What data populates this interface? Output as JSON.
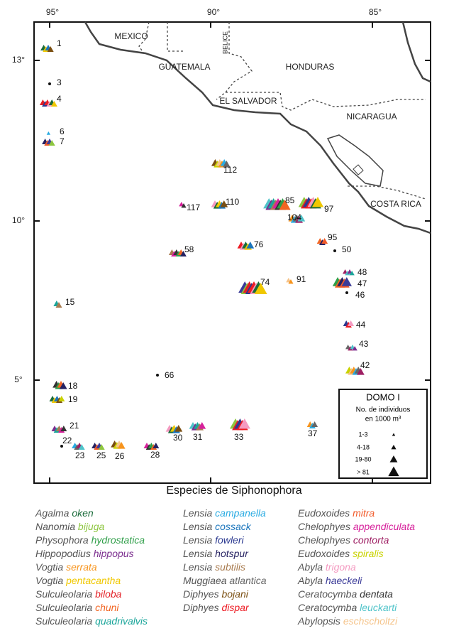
{
  "map": {
    "countries": [
      "MEXICO",
      "GUATEMALA",
      "HONDURAS",
      "EL SALVADOR",
      "NICARAGUA",
      "COSTA RICA"
    ],
    "belize": "BELICE",
    "lon_labels": [
      "95°",
      "90°",
      "85°"
    ],
    "lat_labels": [
      "13°",
      "10°",
      "5°"
    ],
    "stations": [
      "1",
      "3",
      "4",
      "6",
      "7",
      "112",
      "117",
      "110",
      "85",
      "97",
      "104",
      "95",
      "50",
      "58",
      "76",
      "48",
      "74",
      "91",
      "47",
      "46",
      "15",
      "44",
      "43",
      "66",
      "42",
      "18",
      "19",
      "21",
      "22",
      "23",
      "25",
      "26",
      "28",
      "30",
      "31",
      "33",
      "37"
    ]
  },
  "legend": {
    "title": "DOMO I",
    "subtitle": "No. de individuos",
    "unit": "en 1000 m³",
    "classes": [
      "1-3",
      "4-18",
      "19-80",
      "> 81"
    ]
  },
  "species_title": "Especies de Siphonophora",
  "species": [
    {
      "genus": "Agalma",
      "name": "oken",
      "color": "#1a6b3a"
    },
    {
      "genus": "Nanomia",
      "name": "bijuga",
      "color": "#8dc63f"
    },
    {
      "genus": "Physophora",
      "name": "hydrostatica",
      "color": "#2e9e48"
    },
    {
      "genus": "Hippopodius",
      "name": "hippopus",
      "color": "#7b2d8e"
    },
    {
      "genus": "Vogtia",
      "name": "serrata",
      "color": "#f7941d"
    },
    {
      "genus": "Vogtia",
      "name": "pentacantha",
      "color": "#f0c800"
    },
    {
      "genus": "Sulculeolaria",
      "name": "biloba",
      "color": "#e31e24"
    },
    {
      "genus": "Sulculeolaria",
      "name": "chuni",
      "color": "#f26522"
    },
    {
      "genus": "Sulculeolaria",
      "name": "quadrivalvis",
      "color": "#1aa59a"
    },
    {
      "genus": "Lensia",
      "name": "campanella",
      "color": "#29abe2"
    },
    {
      "genus": "Lensia",
      "name": "cossack",
      "color": "#1b75bc"
    },
    {
      "genus": "Lensia",
      "name": "fowleri",
      "color": "#2b3990"
    },
    {
      "genus": "Lensia",
      "name": "hotspur",
      "color": "#262262"
    },
    {
      "genus": "Lensia",
      "name": "subtilis",
      "color": "#a97c50"
    },
    {
      "genus": "Muggiaea",
      "name": "atlantica",
      "color": "#666666"
    },
    {
      "genus": "Diphyes",
      "name": "bojani",
      "color": "#7a4e10"
    },
    {
      "genus": "Diphyes",
      "name": "dispar",
      "color": "#ed1c24"
    },
    {
      "genus": "Eudoxoides",
      "name": "mitra",
      "color": "#f15a29"
    },
    {
      "genus": "Chelophyes",
      "name": "appendiculata",
      "color": "#d6219b"
    },
    {
      "genus": "Chelophyes",
      "name": "contorta",
      "color": "#9e1f63"
    },
    {
      "genus": "Eudoxoides",
      "name": "spiralis",
      "color": "#c9d200"
    },
    {
      "genus": "Abyla",
      "name": "trigona",
      "color": "#f49ac1"
    },
    {
      "genus": "Abyla",
      "name": "haeckeli",
      "color": "#3b3b98"
    },
    {
      "genus": "Ceratocymba",
      "name": "dentata",
      "color": "#333333"
    },
    {
      "genus": "Ceratocymba",
      "name": "leuckarti",
      "color": "#4fc3c9"
    },
    {
      "genus": "Abylopsis",
      "name": "eschscholtzi",
      "color": "#f5c48b"
    }
  ]
}
